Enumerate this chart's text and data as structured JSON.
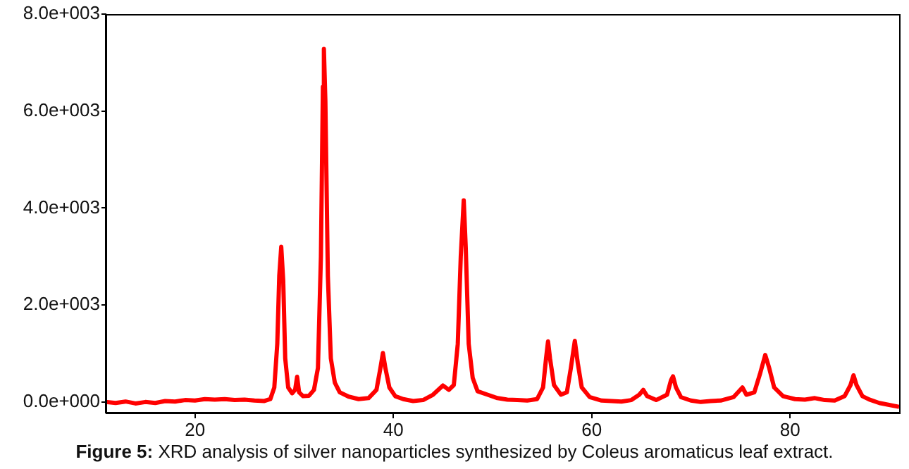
{
  "chart_data": {
    "type": "line",
    "annotations": [
      "Figure 5: XRD analysis of silver nanoparticles synthesized by Coleus aromaticus leaf extract."
    ],
    "xlim": [
      11,
      91
    ],
    "xticks": [
      20,
      40,
      60,
      80
    ],
    "ylim": [
      -220,
      8000
    ],
    "yticks": [
      {
        "value": 0,
        "label": "0.0e+000"
      },
      {
        "value": 2000,
        "label": "2.0e+003"
      },
      {
        "value": 4000,
        "label": "4.0e+003"
      },
      {
        "value": 6000,
        "label": "6.0e+003"
      },
      {
        "value": 8000,
        "label": "8.0e+003"
      }
    ],
    "grid": false,
    "legend": false,
    "marker": "none",
    "line_style": "solid",
    "series": [
      {
        "color": "#ff0000",
        "x": [
          11,
          12,
          13,
          14,
          15,
          16,
          17,
          18,
          19,
          20,
          21,
          22,
          23,
          24,
          25,
          26,
          27,
          27.6,
          28.0,
          28.3,
          28.5,
          28.7,
          28.9,
          29.1,
          29.4,
          29.8,
          30.1,
          30.3,
          30.5,
          30.9,
          31.5,
          32.0,
          32.4,
          32.7,
          32.9,
          33.0,
          33.15,
          33.4,
          33.7,
          34.1,
          34.6,
          35.5,
          36.5,
          37.5,
          38.3,
          38.7,
          38.95,
          39.2,
          39.6,
          40.2,
          41,
          42,
          43,
          44,
          45,
          45.6,
          46.1,
          46.5,
          46.8,
          47.1,
          47.3,
          47.6,
          48,
          48.5,
          49.5,
          50.5,
          51.5,
          52.5,
          53.5,
          54.5,
          55.1,
          55.4,
          55.6,
          55.8,
          56.2,
          56.9,
          57.5,
          57.9,
          58.3,
          58.6,
          59,
          59.8,
          61,
          62,
          63,
          64,
          64.8,
          65.2,
          65.6,
          66.5,
          67.6,
          68.0,
          68.2,
          68.5,
          69,
          70,
          71,
          72,
          73,
          74.3,
          75.2,
          75.6,
          76.4,
          77,
          77.5,
          77.9,
          78.4,
          79.3,
          80.5,
          81.5,
          82.5,
          83.5,
          84.5,
          85.5,
          86.1,
          86.4,
          86.7,
          87.3,
          88,
          89,
          90,
          91
        ],
        "values": [
          0,
          -20,
          10,
          -30,
          0,
          -20,
          20,
          10,
          40,
          30,
          60,
          50,
          60,
          40,
          50,
          30,
          20,
          60,
          300,
          1200,
          2600,
          3200,
          2500,
          900,
          300,
          180,
          250,
          520,
          200,
          120,
          130,
          250,
          700,
          3000,
          6500,
          7280,
          6200,
          2600,
          900,
          400,
          200,
          110,
          60,
          80,
          250,
          700,
          1010,
          700,
          300,
          120,
          60,
          20,
          40,
          150,
          340,
          250,
          350,
          1200,
          3000,
          4160,
          3200,
          1200,
          500,
          220,
          150,
          80,
          50,
          40,
          30,
          60,
          300,
          900,
          1250,
          900,
          350,
          150,
          200,
          700,
          1260,
          800,
          300,
          100,
          30,
          20,
          10,
          40,
          150,
          250,
          120,
          40,
          150,
          450,
          530,
          300,
          100,
          30,
          0,
          20,
          30,
          100,
          300,
          150,
          200,
          600,
          970,
          700,
          300,
          120,
          60,
          50,
          80,
          40,
          30,
          120,
          350,
          550,
          350,
          120,
          50,
          -20,
          -60,
          -100
        ]
      }
    ]
  }
}
